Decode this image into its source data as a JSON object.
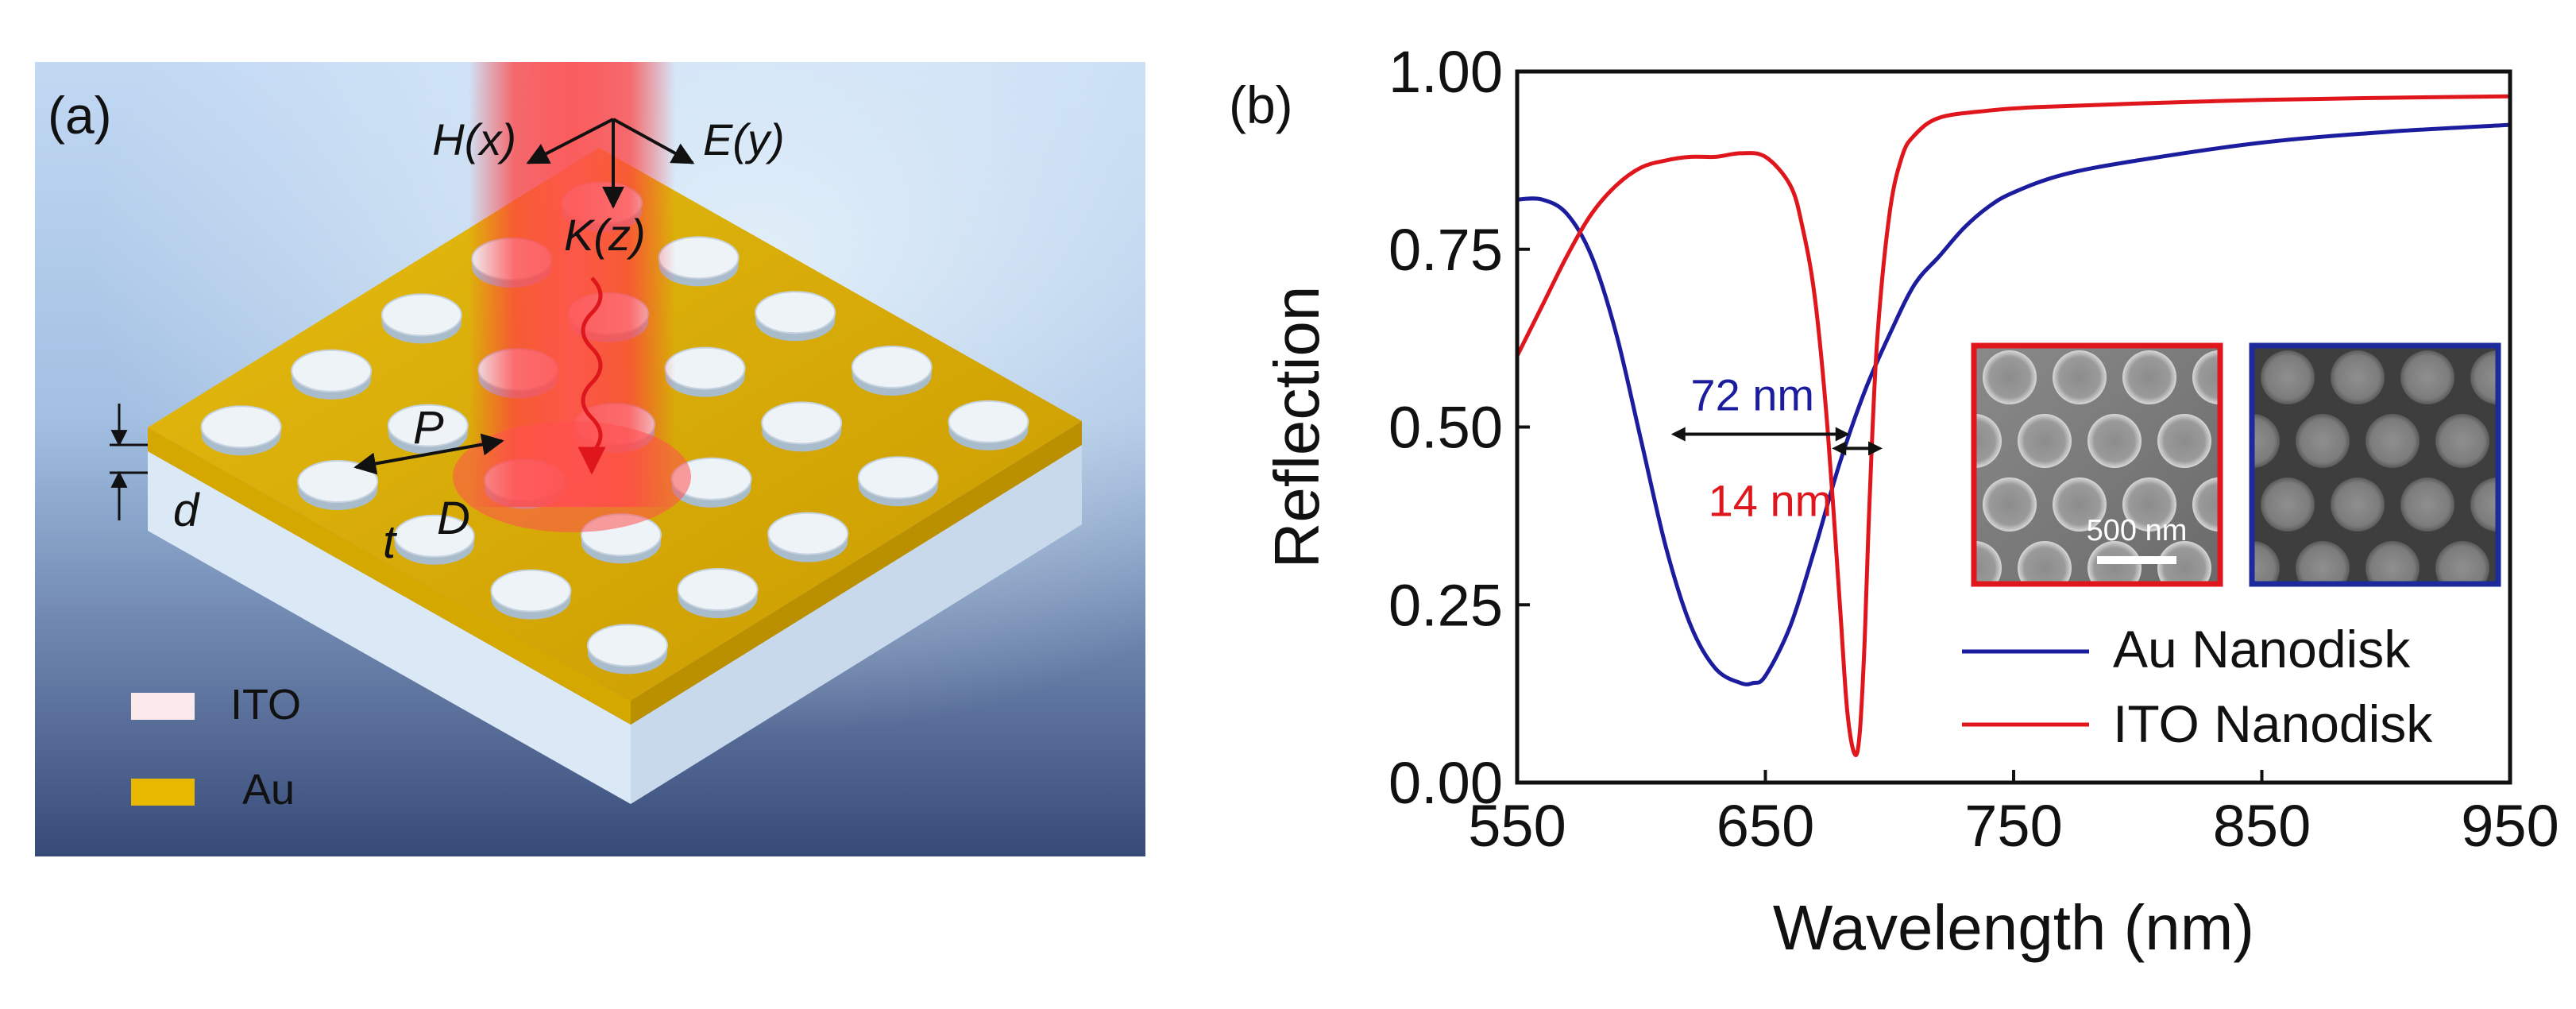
{
  "panel_a": {
    "label": "(a)",
    "field_labels": {
      "h": "H(x)",
      "e": "E(y)",
      "k": "K(z)"
    },
    "param_labels": {
      "p": "P",
      "d_big": "D",
      "t": "t",
      "d_small": "d"
    },
    "legend": [
      {
        "label": "ITO",
        "color": "#fbe9ec"
      },
      {
        "label": "Au",
        "color": "#e8b800"
      }
    ]
  },
  "panel_b": {
    "label": "(b)"
  },
  "chart_data": {
    "type": "line",
    "title": "",
    "xlabel": "Wavelength (nm)",
    "ylabel": "Reflection",
    "xlim": [
      550,
      950
    ],
    "ylim": [
      0,
      1
    ],
    "xticks": [
      550,
      650,
      750,
      850,
      950
    ],
    "xtick_labels": [
      "550",
      "650",
      "750",
      "850",
      "950"
    ],
    "yticks": [
      0,
      0.25,
      0.5,
      0.75,
      1.0
    ],
    "ytick_labels": [
      "0.00",
      "0.25",
      "0.50",
      "0.75",
      "1.00"
    ],
    "grid": false,
    "legend_position": "bottom-right",
    "series": [
      {
        "name": "Au Nanodisk",
        "color": "#1c1c9e",
        "x": [
          550,
          560,
          570,
          580,
          590,
          600,
          610,
          620,
          630,
          640,
          645,
          650,
          660,
          670,
          680,
          690,
          700,
          710,
          720,
          730,
          740,
          750,
          770,
          800,
          850,
          900,
          950
        ],
        "y": [
          0.82,
          0.82,
          0.8,
          0.74,
          0.63,
          0.48,
          0.33,
          0.22,
          0.16,
          0.14,
          0.14,
          0.15,
          0.22,
          0.33,
          0.45,
          0.55,
          0.63,
          0.7,
          0.74,
          0.78,
          0.81,
          0.83,
          0.855,
          0.875,
          0.9,
          0.915,
          0.925
        ]
      },
      {
        "name": "ITO Nanodisk",
        "color": "#e0161d",
        "x": [
          550,
          560,
          570,
          580,
          590,
          600,
          610,
          620,
          630,
          640,
          650,
          660,
          665,
          670,
          675,
          680,
          683,
          686,
          688,
          690,
          692,
          695,
          700,
          705,
          710,
          720,
          740,
          760,
          800,
          850,
          900,
          950
        ],
        "y": [
          0.6,
          0.67,
          0.74,
          0.8,
          0.84,
          0.865,
          0.875,
          0.88,
          0.88,
          0.885,
          0.88,
          0.84,
          0.78,
          0.68,
          0.5,
          0.25,
          0.1,
          0.04,
          0.07,
          0.2,
          0.4,
          0.62,
          0.8,
          0.88,
          0.91,
          0.935,
          0.945,
          0.95,
          0.955,
          0.96,
          0.963,
          0.965
        ]
      }
    ],
    "annotations": [
      {
        "text": "72 nm",
        "color": "#1c1c9e",
        "from": 612,
        "to": 684,
        "y": 0.49
      },
      {
        "text": "14 nm",
        "color": "#e0161d",
        "from": 680,
        "to": 694,
        "y": 0.47
      }
    ]
  },
  "insets": [
    {
      "border_color": "#e0161d",
      "scalebar_label": "500 nm"
    },
    {
      "border_color": "#1c2a9c"
    }
  ]
}
